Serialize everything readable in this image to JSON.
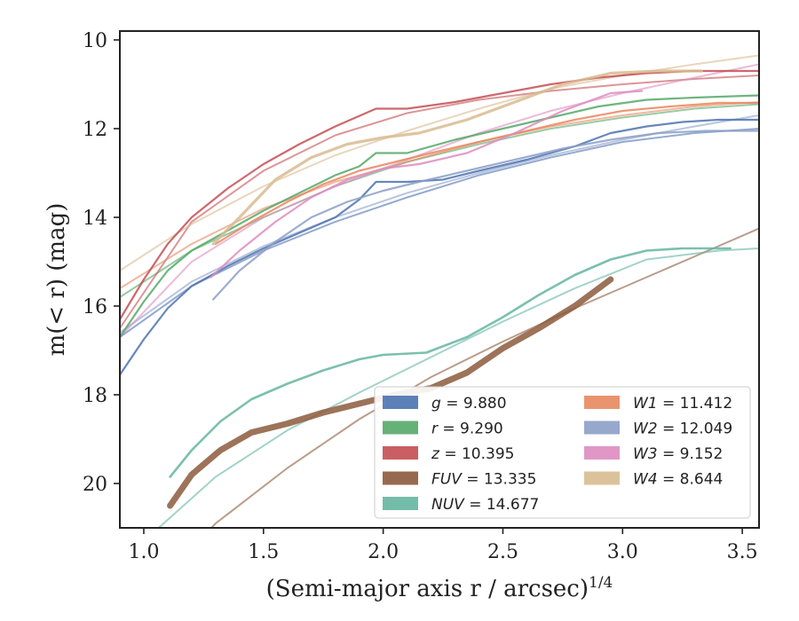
{
  "chart_data": {
    "type": "line",
    "xlabel": "(Semi-major axis r / arcsec)",
    "xlabel_sup": "1/4",
    "ylabel": "m(< r) (mag)",
    "xlim": [
      0.9,
      3.57
    ],
    "ylim": [
      21.0,
      9.8
    ],
    "y_inverted": true,
    "grid": false,
    "legend_position": "lower-right",
    "xticks": [
      1.0,
      1.5,
      2.0,
      2.5,
      3.0,
      3.5
    ],
    "xtick_labels": [
      "1.0",
      "1.5",
      "2.0",
      "2.5",
      "3.0",
      "3.5"
    ],
    "yticks": [
      10,
      12,
      14,
      16,
      18,
      20
    ],
    "ytick_labels": [
      "10",
      "12",
      "14",
      "16",
      "18",
      "20"
    ],
    "series": [
      {
        "name": "g",
        "value": "9.880",
        "color": "#4c72b0",
        "width": 2.2,
        "x": [
          0.9,
          1.0,
          1.1,
          1.2,
          1.35,
          1.5,
          1.65,
          1.8,
          1.9,
          1.97,
          2.1,
          2.25,
          2.4,
          2.6,
          2.8,
          2.95,
          3.1,
          3.25,
          3.4,
          3.57
        ],
        "y": [
          17.55,
          16.75,
          16.05,
          15.55,
          15.1,
          14.7,
          14.35,
          14.0,
          13.6,
          13.2,
          13.2,
          13.15,
          12.95,
          12.7,
          12.4,
          12.1,
          11.95,
          11.85,
          11.8,
          11.8
        ],
        "fit_x": [
          0.9,
          1.2,
          1.5,
          1.8,
          2.1,
          2.4,
          2.7,
          3.0,
          3.3,
          3.57
        ],
        "fit_y": [
          16.7,
          15.55,
          14.75,
          14.1,
          13.55,
          13.05,
          12.65,
          12.3,
          12.1,
          12.0
        ]
      },
      {
        "name": "r",
        "value": "9.290",
        "color": "#55a868",
        "width": 2.2,
        "x": [
          0.9,
          1.0,
          1.1,
          1.2,
          1.35,
          1.5,
          1.65,
          1.8,
          1.9,
          1.97,
          2.1,
          2.3,
          2.5,
          2.7,
          2.9,
          3.1,
          3.3,
          3.57
        ],
        "y": [
          16.7,
          15.9,
          15.2,
          14.75,
          14.3,
          13.85,
          13.45,
          13.05,
          12.85,
          12.55,
          12.55,
          12.25,
          12.0,
          11.75,
          11.5,
          11.35,
          11.3,
          11.25
        ],
        "fit_x": [
          0.9,
          1.2,
          1.5,
          1.8,
          2.1,
          2.4,
          2.7,
          3.0,
          3.3,
          3.57
        ],
        "fit_y": [
          15.8,
          14.75,
          14.0,
          13.3,
          12.75,
          12.35,
          12.0,
          11.75,
          11.55,
          11.45
        ]
      },
      {
        "name": "z",
        "value": "10.395",
        "color": "#c44e52",
        "width": 2.2,
        "x": [
          0.9,
          1.0,
          1.1,
          1.2,
          1.35,
          1.5,
          1.65,
          1.8,
          1.97,
          2.1,
          2.3,
          2.5,
          2.7,
          2.9,
          3.1,
          3.3,
          3.57
        ],
        "y": [
          16.3,
          15.4,
          14.6,
          14.0,
          13.35,
          12.8,
          12.35,
          11.95,
          11.55,
          11.55,
          11.4,
          11.2,
          11.0,
          10.85,
          10.75,
          10.7,
          10.7
        ],
        "fit_x": [
          0.9,
          1.2,
          1.5,
          1.8,
          2.1,
          2.4,
          2.7,
          3.0,
          3.3,
          3.57
        ],
        "fit_y": [
          16.5,
          14.1,
          12.95,
          12.15,
          11.65,
          11.35,
          11.15,
          11.0,
          10.88,
          10.8
        ]
      },
      {
        "name": "FUV",
        "value": "13.335",
        "color": "#8c5a3c",
        "width": 7,
        "x": [
          1.11,
          1.2,
          1.32,
          1.45,
          1.6,
          1.75,
          1.9,
          2.05,
          2.2,
          2.35,
          2.5,
          2.65,
          2.8,
          2.95
        ],
        "y": [
          20.5,
          19.8,
          19.25,
          18.85,
          18.65,
          18.4,
          18.2,
          18.0,
          17.85,
          17.5,
          16.95,
          16.5,
          16.0,
          15.4
        ],
        "fit_x": [
          1.0,
          1.3,
          1.6,
          1.9,
          2.2,
          2.5,
          2.8,
          3.1,
          3.4,
          3.57
        ],
        "fit_y": [
          22.6,
          20.9,
          19.65,
          18.55,
          17.6,
          16.8,
          16.05,
          15.35,
          14.65,
          14.25
        ]
      },
      {
        "name": "NUV",
        "value": "14.677",
        "color": "#64b5a0",
        "width": 2.6,
        "x": [
          1.11,
          1.2,
          1.32,
          1.45,
          1.6,
          1.75,
          1.9,
          2.0,
          2.18,
          2.35,
          2.5,
          2.65,
          2.8,
          2.95,
          3.1,
          3.25,
          3.45
        ],
        "y": [
          19.85,
          19.25,
          18.6,
          18.1,
          17.75,
          17.45,
          17.2,
          17.1,
          17.05,
          16.7,
          16.25,
          15.75,
          15.3,
          14.95,
          14.75,
          14.7,
          14.7
        ],
        "fit_x": [
          1.0,
          1.3,
          1.6,
          1.9,
          2.2,
          2.5,
          2.8,
          3.1,
          3.4,
          3.57
        ],
        "fit_y": [
          21.3,
          19.85,
          18.8,
          17.95,
          17.15,
          16.35,
          15.6,
          14.95,
          14.75,
          14.7
        ]
      },
      {
        "name": "W1",
        "value": "11.412",
        "color": "#e8875f",
        "width": 2.2,
        "x": [
          1.3,
          1.45,
          1.6,
          1.75,
          1.9,
          2.05,
          2.2,
          2.4,
          2.6,
          2.8,
          3.0,
          3.2,
          3.4,
          3.57
        ],
        "y": [
          14.6,
          14.1,
          13.65,
          13.25,
          12.95,
          12.75,
          12.55,
          12.3,
          12.05,
          11.8,
          11.6,
          11.5,
          11.42,
          11.42
        ],
        "fit_x": [
          0.9,
          1.2,
          1.5,
          1.8,
          2.1,
          2.4,
          2.7,
          3.0,
          3.3,
          3.57
        ],
        "fit_y": [
          15.6,
          14.6,
          13.8,
          13.2,
          12.75,
          12.3,
          11.95,
          11.7,
          11.5,
          11.4
        ]
      },
      {
        "name": "W2",
        "value": "12.049",
        "color": "#8c9fc8",
        "width": 2.2,
        "x": [
          1.29,
          1.4,
          1.55,
          1.7,
          1.85,
          2.0,
          2.15,
          2.35,
          2.55,
          2.75,
          2.95,
          3.15,
          3.35,
          3.57
        ],
        "y": [
          15.85,
          15.2,
          14.55,
          14.0,
          13.65,
          13.4,
          13.2,
          12.95,
          12.7,
          12.45,
          12.25,
          12.1,
          12.05,
          12.05
        ],
        "fit_x": [
          0.9,
          1.2,
          1.5,
          1.8,
          2.1,
          2.4,
          2.7,
          3.0,
          3.3,
          3.57
        ],
        "fit_y": [
          16.6,
          15.45,
          14.65,
          14.0,
          13.45,
          13.0,
          12.6,
          12.25,
          11.95,
          11.7
        ]
      },
      {
        "name": "W3",
        "value": "9.152",
        "color": "#dd8cc0",
        "width": 2.2,
        "x": [
          1.28,
          1.4,
          1.55,
          1.7,
          1.85,
          2.0,
          2.15,
          2.35,
          2.55,
          2.75,
          2.95,
          3.08
        ],
        "y": [
          15.35,
          14.75,
          14.1,
          13.55,
          13.15,
          12.9,
          12.8,
          12.55,
          12.1,
          11.6,
          11.2,
          11.15
        ],
        "fit_x": [
          0.9,
          1.2,
          1.5,
          1.8,
          2.1,
          2.4,
          2.7,
          3.0,
          3.3,
          3.57
        ],
        "fit_y": [
          16.7,
          15.0,
          14.0,
          13.3,
          12.7,
          12.1,
          11.6,
          11.2,
          10.85,
          10.55
        ]
      },
      {
        "name": "W4",
        "value": "8.644",
        "color": "#d8bb90",
        "width": 3.2,
        "x": [
          1.29,
          1.4,
          1.55,
          1.7,
          1.85,
          2.0,
          2.15,
          2.35,
          2.55,
          2.75,
          2.95,
          3.15,
          3.33
        ],
        "y": [
          14.6,
          14.0,
          13.15,
          12.65,
          12.35,
          12.2,
          12.1,
          11.8,
          11.4,
          11.0,
          10.75,
          10.7,
          10.7
        ],
        "fit_x": [
          0.9,
          1.2,
          1.5,
          1.8,
          2.1,
          2.4,
          2.7,
          3.0,
          3.3,
          3.57
        ],
        "fit_y": [
          15.2,
          14.15,
          13.3,
          12.6,
          12.05,
          11.55,
          11.1,
          10.8,
          10.55,
          10.35
        ]
      }
    ]
  }
}
